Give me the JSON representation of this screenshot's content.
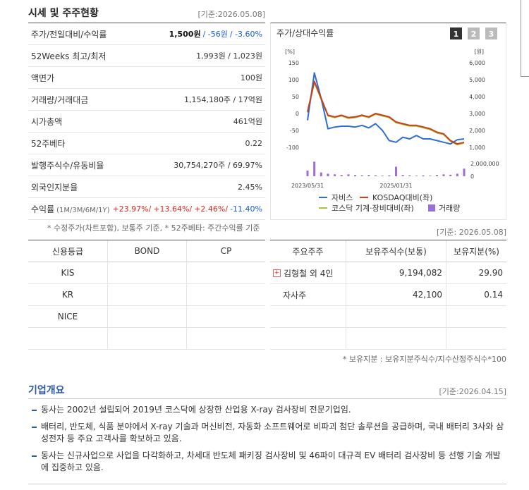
{
  "market": {
    "title": "시세 및 주주현황",
    "date": "[기준:2026.05.08]",
    "rows": [
      {
        "label": "주가/전일대비/수익률",
        "values": [
          "1,500원",
          "/ -56원",
          "/ -3.60%"
        ]
      },
      {
        "label": "52Weeks 최고/최저",
        "values": [
          "1,993원 / 1,023원"
        ]
      },
      {
        "label": "액면가",
        "values": [
          "100원"
        ]
      },
      {
        "label": "거래량/거래대금",
        "values": [
          "1,154,180주 / 17억원"
        ]
      },
      {
        "label": "시가총액",
        "values": [
          "461억원"
        ]
      },
      {
        "label": "52주베타",
        "values": [
          "0.22"
        ]
      },
      {
        "label": "발행주식수/유동비율",
        "values": [
          "30,754,270주 / 69.97%"
        ]
      },
      {
        "label": "외국인지분율",
        "values": [
          "2.45%"
        ]
      },
      {
        "label": "수익률",
        "sub": "(1M/3M/6M/1Y)",
        "values": [
          "+23.97%/",
          "+13.64%/",
          "+2.46%/",
          "-11.40%"
        ]
      }
    ],
    "footnote": "* 수정주가(차트포함), 보통주 기준, * 52주베타: 주간수익률 기준"
  },
  "chart_tabs": [
    "1",
    "2",
    "3"
  ],
  "chart_data": {
    "type": "line",
    "title": "주가/상대수익률",
    "ylabel": "[%]",
    "y2label": "[원]",
    "categories": [
      "2023/05/31",
      null,
      null,
      null,
      null,
      null,
      null,
      null,
      null,
      null,
      null,
      null,
      null,
      "2025/01/31",
      null,
      null,
      null,
      null,
      null,
      null,
      null,
      null,
      null,
      null
    ],
    "ylim": [
      -100,
      150
    ],
    "yticks": [
      150,
      100,
      50,
      0,
      -50,
      -100
    ],
    "y2lim": [
      1000,
      6000
    ],
    "y2ticks": [
      {
        "value": 6000,
        "label": "6,000"
      },
      {
        "value": 5000,
        "label": "5,000"
      },
      {
        "value": 4000,
        "label": "4,000"
      },
      {
        "value": 3000,
        "label": "3,000"
      },
      {
        "value": 2000,
        "label": "2,000"
      },
      {
        "value": 1000,
        "label": "1,000"
      }
    ],
    "y3lim": [
      0,
      2000000
    ],
    "y3ticks": [
      {
        "value": 2000000,
        "label": "2,000,000"
      },
      0
    ],
    "grid": false,
    "series": [
      {
        "name": "자비스",
        "color": "#2f6fcf",
        "axis": "y2",
        "values": [
          2600,
          5400,
          3900,
          2100,
          2200,
          2250,
          2250,
          2200,
          2300,
          2150,
          2400,
          2000,
          1400,
          1300,
          1600,
          1500,
          1700,
          1500,
          1500,
          1400,
          1300,
          1200,
          1450,
          1500
        ]
      },
      {
        "name": "KOSDAQ대비(좌)",
        "color": "#c8411e",
        "values": [
          5,
          95,
          45,
          -5,
          -10,
          -5,
          -12,
          -10,
          -5,
          -10,
          0,
          -5,
          -10,
          -25,
          -30,
          -35,
          -35,
          -40,
          -45,
          -55,
          -60,
          -80,
          -90,
          -85
        ]
      },
      {
        "name": "코스닥 기계·장비대비(좌)",
        "color": "#a8c23a",
        "values": [
          3,
          92,
          42,
          -7,
          -12,
          -7,
          -14,
          -12,
          -7,
          -12,
          -2,
          -7,
          -12,
          -27,
          -32,
          -37,
          -37,
          -42,
          -47,
          -57,
          -62,
          -82,
          -92,
          -87
        ]
      },
      {
        "name": "거래량",
        "type": "bar",
        "axis": "y3",
        "color": "#9b6fd6",
        "values": [
          900000,
          2300000,
          600000,
          400000,
          300000,
          200000,
          300000,
          200000,
          150000,
          200000,
          150000,
          100000,
          150000,
          1500000,
          200000,
          150000,
          100000,
          150000,
          100000,
          200000,
          300000,
          250000,
          400000,
          1200000
        ]
      }
    ]
  },
  "credit": {
    "header": [
      "신용등급",
      "BOND",
      "CP"
    ],
    "rows": [
      [
        "KIS"
      ],
      [
        "KR"
      ],
      [
        "NICE"
      ]
    ]
  },
  "shareholders": {
    "date": "[기준: 2026.05.08]",
    "header": [
      "주요주주",
      "보유주식수(보통)",
      "보유지분(%)"
    ],
    "rows": [
      [
        "김형철 외 4인",
        "9,194,082",
        "29.90"
      ],
      [
        "자사주",
        "42,100",
        "0.14"
      ]
    ],
    "footnote": "* 보유지분 : 보유지분주식수/지수산정주식수*100"
  },
  "overview": {
    "title": "기업개요",
    "date": "[기준:2026.04.15]",
    "items": [
      "동사는 2002년 설립되어 2019년 코스닥에 상장한 산업용 X-ray 검사장비 전문기업임.",
      "배터리, 반도체, 식품 분야에서 X-ray 기술과 머신비전, 자동화 소프트웨어로 비파괴 첨단 솔루션을 공급하며, 국내 배터리 3사와 삼성전자 등 주요 고객사를 확보하고 있음.",
      "동사는 신규사업으로 사업을 다각화하고, 차세대 반도체 패키징 검사장비 및 46파이 대규격 EV 배터리 검사장비 등 선행 기술 개발에 집중하고 있음."
    ]
  }
}
